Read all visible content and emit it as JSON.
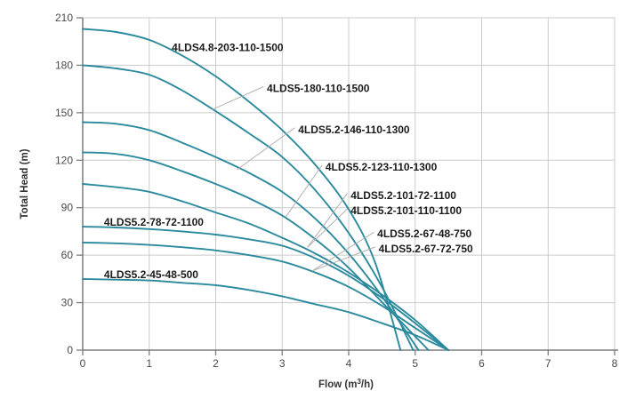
{
  "chart_data": {
    "type": "line",
    "title": "",
    "xlabel_parts": [
      "Flow (m",
      "3",
      "/h)"
    ],
    "ylabel": "Total Head (m)",
    "xlim": [
      0,
      8
    ],
    "ylim": [
      0,
      210
    ],
    "x_ticks": [
      0,
      1,
      2,
      3,
      4,
      5,
      6,
      7,
      8
    ],
    "y_ticks": [
      0,
      30,
      60,
      90,
      120,
      150,
      180,
      210
    ],
    "grid": true,
    "legend_position": "none",
    "colors": {
      "curve": "#2b8a9d",
      "grid": "#cbcbcb",
      "axis": "#7d7d7d",
      "tick_text": "#4a4a4a",
      "label_text": "#1b1b1b",
      "leader": "#b0b0b0",
      "background": "#ffffff"
    },
    "series": [
      {
        "name": "4LDS4.8-203-110-1500",
        "points": [
          [
            0,
            203
          ],
          [
            0.5,
            201
          ],
          [
            1,
            196
          ],
          [
            1.5,
            186
          ],
          [
            2,
            173
          ],
          [
            2.5,
            157
          ],
          [
            3,
            139
          ],
          [
            3.5,
            117
          ],
          [
            4,
            89
          ],
          [
            4.4,
            55
          ],
          [
            4.78,
            0
          ]
        ]
      },
      {
        "name": "4LDS5-180-110-1500",
        "points": [
          [
            0,
            180
          ],
          [
            0.5,
            178
          ],
          [
            1,
            174
          ],
          [
            1.5,
            164
          ],
          [
            2,
            151
          ],
          [
            2.5,
            137
          ],
          [
            3,
            122
          ],
          [
            3.5,
            101
          ],
          [
            4,
            74
          ],
          [
            4.5,
            40
          ],
          [
            4.97,
            0
          ]
        ]
      },
      {
        "name": "4LDS5.2-146-110-1300",
        "points": [
          [
            0,
            144
          ],
          [
            0.5,
            143
          ],
          [
            1,
            139
          ],
          [
            1.5,
            131
          ],
          [
            2,
            122
          ],
          [
            2.5,
            112
          ],
          [
            3,
            100
          ],
          [
            3.5,
            83
          ],
          [
            4,
            61
          ],
          [
            4.5,
            34
          ],
          [
            5.05,
            0
          ]
        ]
      },
      {
        "name": "4LDS5.2-123-110-1300",
        "points": [
          [
            0,
            125
          ],
          [
            0.5,
            124
          ],
          [
            1,
            120
          ],
          [
            1.5,
            113
          ],
          [
            2,
            105
          ],
          [
            2.5,
            96
          ],
          [
            3,
            85
          ],
          [
            3.5,
            70
          ],
          [
            4,
            52
          ],
          [
            4.6,
            26
          ],
          [
            5.2,
            0
          ]
        ]
      },
      {
        "name": "4LDS5.2-101-72-1100 / 4LDS5.2-101-110-1100",
        "points": [
          [
            0,
            105
          ],
          [
            0.5,
            103
          ],
          [
            1,
            100
          ],
          [
            1.5,
            94
          ],
          [
            2,
            87
          ],
          [
            2.5,
            80
          ],
          [
            3,
            71
          ],
          [
            3.5,
            61
          ],
          [
            4,
            49
          ],
          [
            4.5,
            35
          ],
          [
            5,
            19
          ],
          [
            5.5,
            0
          ]
        ]
      },
      {
        "name": "4LDS5.2-78-72-1100",
        "points": [
          [
            0,
            78
          ],
          [
            0.5,
            77.5
          ],
          [
            1,
            76.5
          ],
          [
            1.5,
            75
          ],
          [
            2,
            73
          ],
          [
            2.5,
            70
          ],
          [
            3,
            66
          ],
          [
            3.5,
            58
          ],
          [
            4,
            47
          ],
          [
            4.5,
            33
          ],
          [
            5,
            17
          ],
          [
            5.5,
            0
          ]
        ]
      },
      {
        "name": "4LDS5.2-67-48-750 / 4LDS5.2-67-72-750",
        "points": [
          [
            0,
            68
          ],
          [
            0.5,
            67.5
          ],
          [
            1,
            66.5
          ],
          [
            1.5,
            65
          ],
          [
            2,
            63
          ],
          [
            2.5,
            60
          ],
          [
            3,
            56
          ],
          [
            3.5,
            49
          ],
          [
            4,
            40
          ],
          [
            4.5,
            28
          ],
          [
            5,
            14
          ],
          [
            5.5,
            0
          ]
        ]
      },
      {
        "name": "4LDS5.2-45-48-500",
        "points": [
          [
            0,
            45
          ],
          [
            0.5,
            44.5
          ],
          [
            1,
            44
          ],
          [
            1.5,
            42.5
          ],
          [
            2,
            41
          ],
          [
            2.5,
            38
          ],
          [
            3,
            34
          ],
          [
            3.5,
            29
          ],
          [
            4,
            24
          ],
          [
            4.5,
            17
          ],
          [
            5,
            9.5
          ],
          [
            5.5,
            0
          ]
        ]
      }
    ],
    "annotations": [
      {
        "text": "4LDS4.8-203-110-1500",
        "q": 1.34,
        "h": 189,
        "leader": null
      },
      {
        "text": "4LDS5-180-110-1500",
        "q": 2.77,
        "h": 163,
        "leader": {
          "from": [
            2.72,
            166.5
          ],
          "to": [
            1.95,
            152
          ]
        }
      },
      {
        "text": "4LDS5.2-146-110-1300",
        "q": 3.24,
        "h": 137,
        "leader": {
          "from": [
            3.19,
            140.5
          ],
          "to": [
            2.32,
            114
          ]
        }
      },
      {
        "text": "4LDS5.2-123-110-1300",
        "q": 3.65,
        "h": 113.4,
        "leader": {
          "from": [
            3.6,
            116.8
          ],
          "to": [
            3.05,
            84
          ]
        }
      },
      {
        "text": "4LDS5.2-101-72-1100",
        "q": 4.03,
        "h": 95.5,
        "leader": {
          "from": [
            3.98,
            99.0
          ],
          "to": [
            3.38,
            65
          ]
        }
      },
      {
        "text": "4LDS5.2-101-110-1100",
        "q": 4.03,
        "h": 85.9,
        "leader": {
          "from": [
            3.98,
            89.3
          ],
          "to": [
            3.38,
            65
          ]
        }
      },
      {
        "text": "4LDS5.2-67-48-750",
        "q": 4.43,
        "h": 71.3,
        "leader": {
          "from": [
            4.38,
            74.5
          ],
          "to": [
            3.45,
            50
          ]
        }
      },
      {
        "text": "4LDS5.2-67-72-750",
        "q": 4.45,
        "h": 61.8,
        "leader": {
          "from": [
            4.4,
            65.2
          ],
          "to": [
            3.45,
            50
          ]
        }
      },
      {
        "text": "4LDS5.2-78-72-1100",
        "q": 0.32,
        "h": 78.6,
        "leader": null
      },
      {
        "text": "4LDS5.2-45-48-500",
        "q": 0.32,
        "h": 45.5,
        "leader": null
      }
    ]
  }
}
